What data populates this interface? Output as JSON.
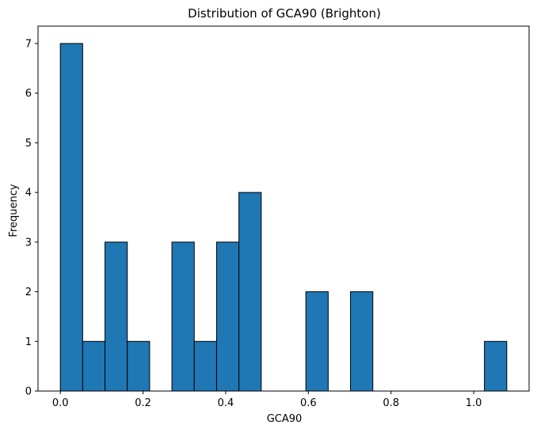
{
  "chart_data": {
    "type": "bar",
    "title": "Distribution of GCA90 (Brighton)",
    "xlabel": "GCA90",
    "ylabel": "Frequency",
    "xlim": [
      -0.054,
      1.134
    ],
    "ylim": [
      0,
      7.35
    ],
    "x_ticks": [
      0.0,
      0.2,
      0.4,
      0.6,
      0.8,
      1.0
    ],
    "x_tick_labels": [
      "0.0",
      "0.2",
      "0.4",
      "0.6",
      "0.8",
      "1.0"
    ],
    "y_ticks": [
      0,
      1,
      2,
      3,
      4,
      5,
      6,
      7
    ],
    "y_tick_labels": [
      "0",
      "1",
      "2",
      "3",
      "4",
      "5",
      "6",
      "7"
    ],
    "bin_edges": [
      0.0,
      0.054,
      0.108,
      0.162,
      0.216,
      0.27,
      0.324,
      0.378,
      0.432,
      0.486,
      0.54,
      0.594,
      0.648,
      0.702,
      0.756,
      0.81,
      0.864,
      0.918,
      0.972,
      1.026,
      1.08
    ],
    "values": [
      7,
      1,
      3,
      1,
      0,
      3,
      1,
      3,
      4,
      0,
      0,
      2,
      0,
      2,
      0,
      0,
      0,
      0,
      0,
      1
    ],
    "grid": false,
    "colors": {
      "bar_fill": "#1f77b4",
      "bar_edge": "#000000",
      "axis": "#000000"
    }
  }
}
